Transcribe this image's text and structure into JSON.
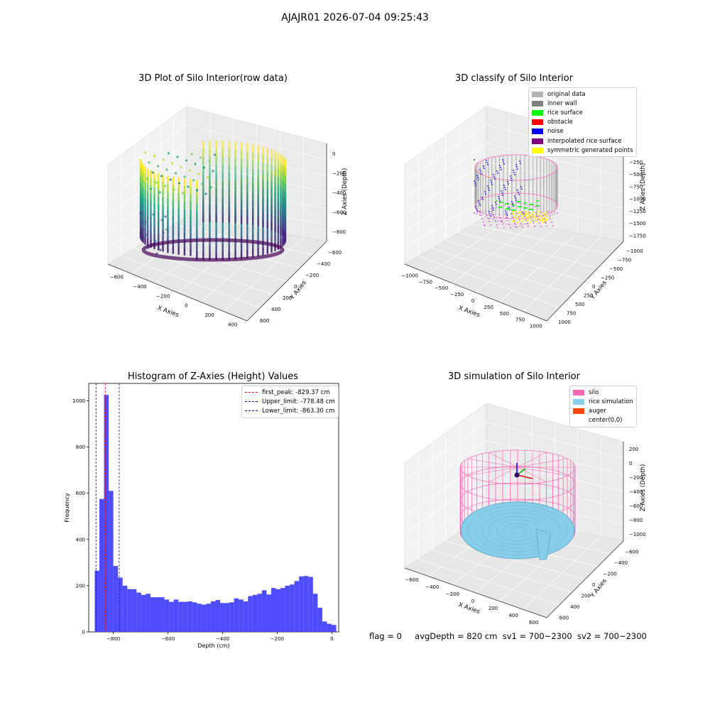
{
  "suptitle": "AJAJR01 2026-07-04 09:25:43",
  "status": {
    "flag": "flag = 0",
    "avg": "avgDepth = 820 cm",
    "sv1": "sv1 = 700~2300",
    "sv2": "sv2 = 700~2300"
  },
  "colors": {
    "hist_bar": "#4d4dff",
    "peak_line": "#ff0000",
    "limit_line": "#0000cc"
  },
  "chart_data": [
    {
      "type": "scatter",
      "projection": "3d",
      "title": "3D Plot of Silo Interior(row data)",
      "xlabel": "X Axies",
      "ylabel": "Y Axies",
      "zlabel": "Z Axies (Depth)",
      "xticks": [
        "−600",
        "−400",
        "−200",
        "0",
        "200",
        "400"
      ],
      "yticks": [
        "600",
        "400",
        "200",
        "0",
        "−200",
        "−400",
        "−600"
      ],
      "zticks": [
        "0",
        "−200",
        "−400",
        "−600",
        "−800"
      ],
      "colormap": "viridis"
    },
    {
      "type": "scatter",
      "projection": "3d",
      "title": "3D classify of Silo Interior",
      "xlabel": "X Axies",
      "ylabel": "Y Axies",
      "zlabel": "Z Axies (Depth)",
      "xticks": [
        "−1000",
        "−750",
        "−500",
        "−250",
        "0",
        "250",
        "500",
        "750",
        "1000"
      ],
      "yticks": [
        "1000",
        "750",
        "500",
        "250",
        "0",
        "−250",
        "−500",
        "−750",
        "−1000"
      ],
      "zticks": [
        "0",
        "−250",
        "−500",
        "−750",
        "−1000",
        "−1250",
        "−1500",
        "−1750"
      ],
      "legend": [
        {
          "label": "original data",
          "color": "#b3b3b3"
        },
        {
          "label": "inner wall",
          "color": "#808080"
        },
        {
          "label": "rice surface",
          "color": "#00ff00"
        },
        {
          "label": "obstacle",
          "color": "#ff0000"
        },
        {
          "label": "noise",
          "color": "#0000ff"
        },
        {
          "label": "interpolated rice surface",
          "color": "#800080"
        },
        {
          "label": "symmetric generated points",
          "color": "#ffff00"
        }
      ]
    },
    {
      "type": "bar",
      "title": "Histogram of Z-Axies (Height) Values",
      "xlabel": "Depth (cm)",
      "ylabel": "Frequency",
      "xlim": [
        -890,
        25
      ],
      "ylim": [
        0,
        1075
      ],
      "xticks": [
        -800,
        -600,
        -400,
        -200,
        0
      ],
      "yticks": [
        0,
        200,
        400,
        600,
        800,
        1000
      ],
      "bin_start": -868,
      "bin_width": 17,
      "values": [
        265,
        575,
        1025,
        610,
        285,
        235,
        200,
        185,
        185,
        170,
        160,
        165,
        150,
        150,
        150,
        140,
        130,
        140,
        130,
        130,
        132,
        128,
        122,
        118,
        122,
        132,
        138,
        125,
        125,
        128,
        145,
        140,
        132,
        155,
        160,
        165,
        180,
        162,
        190,
        185,
        190,
        200,
        205,
        220,
        240,
        242,
        238,
        165,
        105,
        45,
        35,
        30
      ],
      "vlines": [
        {
          "label": "first_peak: -829.37 cm",
          "x": -829.37,
          "color": "#ff0000"
        },
        {
          "label": "Upper_limit: -778.48 cm",
          "x": -778.48,
          "color": "#0000cc"
        },
        {
          "label": "Lower_limit: -863.30 cm",
          "x": -863.3,
          "color": "#0000cc"
        }
      ]
    },
    {
      "type": "scatter",
      "projection": "3d",
      "title": "3D simulation of Silo Interior",
      "xlabel": "X Axies",
      "ylabel": "Y Axies",
      "zlabel": "Z Axies (Depth)",
      "xticks": [
        "−600",
        "−400",
        "−200",
        "0",
        "200",
        "400",
        "600"
      ],
      "yticks": [
        "600",
        "400",
        "200",
        "0",
        "−200",
        "−400",
        "−600"
      ],
      "zticks": [
        "200",
        "0",
        "−200",
        "−400",
        "−600",
        "−800",
        "−1000"
      ],
      "legend": [
        {
          "label": "silo",
          "color": "#ff69b4"
        },
        {
          "label": "rice simulation",
          "color": "#87ceeb"
        },
        {
          "label": "auger",
          "color": "#ff4500"
        },
        {
          "label": "center(0,0)",
          "color": "#ffffff"
        }
      ]
    }
  ]
}
